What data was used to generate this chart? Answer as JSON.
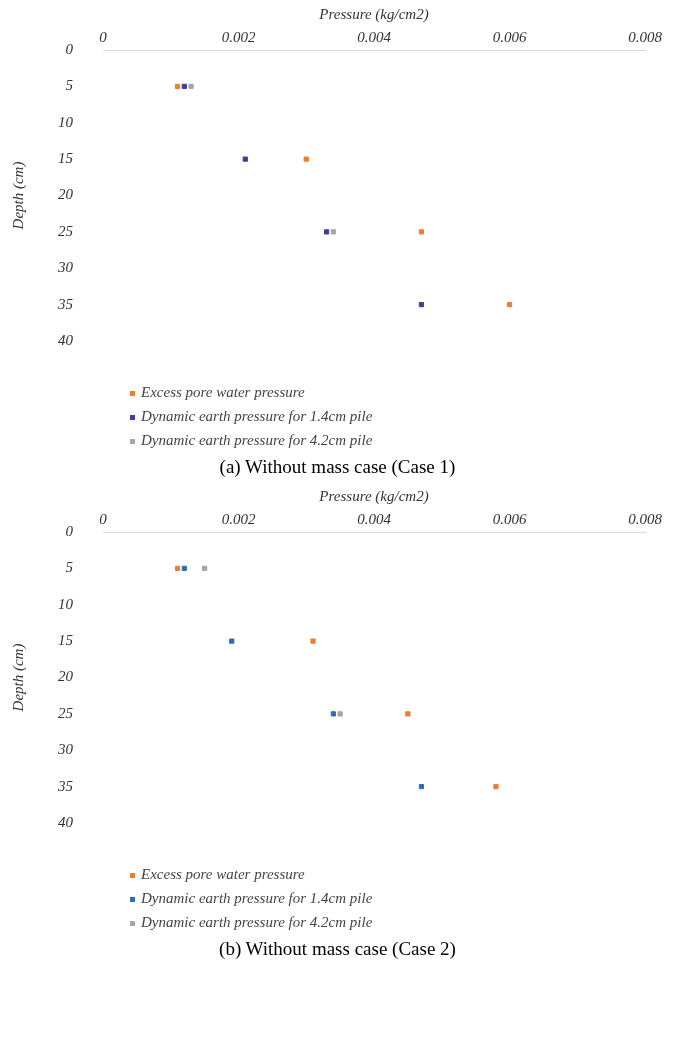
{
  "chart_data": [
    {
      "type": "scatter",
      "title": "(a) Without mass case (Case 1)",
      "xlabel": "Pressure (kg/cm2)",
      "ylabel": "Depth (cm)",
      "xlim": [
        0,
        0.008
      ],
      "xticks": [
        0,
        0.002,
        0.004,
        0.006,
        0.008
      ],
      "ylim": [
        40,
        0
      ],
      "yticks": [
        0,
        5,
        10,
        15,
        20,
        25,
        30,
        35,
        40
      ],
      "grid": false,
      "legend": "bottom",
      "marker": "square",
      "series": [
        {
          "name": "Excess pore water pressure",
          "color": "#ed7d31",
          "x": [
            0.0011,
            0.003,
            0.0047,
            0.006
          ],
          "values": [
            5,
            15,
            25,
            35
          ]
        },
        {
          "name": "Dynamic earth pressure for 1.4cm pile",
          "color": "#3f3f9a",
          "x": [
            0.0012,
            0.0021,
            0.0033,
            0.0047
          ],
          "values": [
            5,
            15,
            25,
            35
          ]
        },
        {
          "name": "Dynamic earth pressure for 4.2cm pile",
          "color": "#a5a5a5",
          "x": [
            0.0013,
            null,
            0.0034,
            null
          ],
          "values": [
            5,
            null,
            25,
            null
          ]
        }
      ]
    },
    {
      "type": "scatter",
      "title": "(b) Without mass case (Case 2)",
      "xlabel": "Pressure (kg/cm2)",
      "ylabel": "Depth (cm)",
      "xlim": [
        0,
        0.008
      ],
      "xticks": [
        0,
        0.002,
        0.004,
        0.006,
        0.008
      ],
      "ylim": [
        40,
        0
      ],
      "yticks": [
        0,
        5,
        10,
        15,
        20,
        25,
        30,
        35,
        40
      ],
      "grid": false,
      "legend": "bottom",
      "marker": "square",
      "series": [
        {
          "name": "Excess pore water pressure",
          "color": "#ed7d31",
          "x": [
            0.0011,
            0.0031,
            0.0045,
            0.0058
          ],
          "values": [
            5,
            15,
            25,
            35
          ]
        },
        {
          "name": "Dynamic earth pressure for 1.4cm pile",
          "color": "#2e6fb0",
          "x": [
            0.0012,
            0.0019,
            0.0034,
            0.0047
          ],
          "values": [
            5,
            15,
            25,
            35
          ]
        },
        {
          "name": "Dynamic earth pressure for 4.2cm pile",
          "color": "#a5a5a5",
          "x": [
            0.0015,
            null,
            0.0035,
            null
          ],
          "values": [
            5,
            null,
            25,
            null
          ]
        }
      ]
    }
  ]
}
